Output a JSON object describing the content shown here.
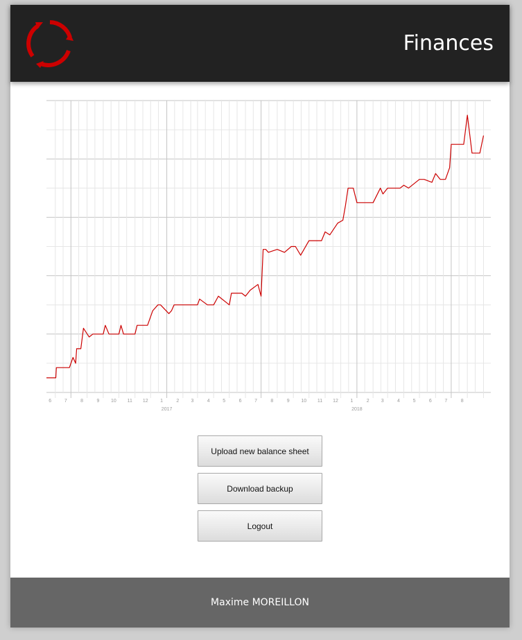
{
  "header": {
    "title": "Finances",
    "logo_icon": "circular-arrows-logo-icon"
  },
  "actions": {
    "upload_label": "Upload new balance sheet",
    "download_label": "Download backup",
    "logout_label": "Logout"
  },
  "footer": {
    "author": "Maxime MOREILLON"
  },
  "colors": {
    "header_bg": "#222222",
    "accent": "#cc0000",
    "footer_bg": "#666666",
    "page_bg": "#cfcfcf"
  },
  "chart_data": {
    "type": "line",
    "title": "",
    "xlabel": "",
    "ylabel": "",
    "grid": true,
    "legend": "none",
    "x_tick_labels": [
      "6",
      "7",
      "8",
      "9",
      "10",
      "11",
      "12",
      "1",
      "2",
      "3",
      "4",
      "5",
      "6",
      "7",
      "8",
      "9",
      "10",
      "11",
      "12",
      "1",
      "2",
      "3",
      "4",
      "5",
      "6",
      "7",
      "8"
    ],
    "x_year_labels": [
      "2017",
      "2018"
    ],
    "series": [
      {
        "color": "#cc0000",
        "x": [
          "2016-05-15",
          "2016-06-02",
          "2016-06-03",
          "2016-06-28",
          "2016-07-05",
          "2016-07-10",
          "2016-07-12",
          "2016-07-20",
          "2016-07-25",
          "2016-08-05",
          "2016-08-12",
          "2016-08-20",
          "2016-09-01",
          "2016-09-05",
          "2016-09-12",
          "2016-10-01",
          "2016-10-05",
          "2016-10-10",
          "2016-11-01",
          "2016-11-05",
          "2016-11-25",
          "2016-12-05",
          "2016-12-15",
          "2016-12-20",
          "2017-01-05",
          "2017-01-10",
          "2017-01-15",
          "2017-02-01",
          "2017-02-15",
          "2017-03-01",
          "2017-03-05",
          "2017-03-20",
          "2017-04-01",
          "2017-04-10",
          "2017-05-01",
          "2017-05-05",
          "2017-05-25",
          "2017-06-01",
          "2017-06-10",
          "2017-06-25",
          "2017-07-01",
          "2017-07-05",
          "2017-07-10",
          "2017-07-15",
          "2017-08-01",
          "2017-08-15",
          "2017-08-28",
          "2017-09-05",
          "2017-09-15",
          "2017-10-01",
          "2017-10-25",
          "2017-11-01",
          "2017-11-10",
          "2017-11-25",
          "2017-12-05",
          "2017-12-10",
          "2017-12-15",
          "2017-12-25",
          "2018-01-01",
          "2018-01-10",
          "2018-01-20",
          "2018-02-01",
          "2018-02-15",
          "2018-02-20",
          "2018-03-01",
          "2018-03-25",
          "2018-04-01",
          "2018-04-10",
          "2018-05-01",
          "2018-05-10",
          "2018-05-25",
          "2018-06-01",
          "2018-06-10",
          "2018-06-20",
          "2018-06-28",
          "2018-07-01",
          "2018-07-25",
          "2018-08-01",
          "2018-08-10",
          "2018-08-25",
          "2018-09-01"
        ],
        "y": [
          0.5,
          0.5,
          0.85,
          0.85,
          1.2,
          1.0,
          1.5,
          1.5,
          2.2,
          1.9,
          2.0,
          2.0,
          2.0,
          2.3,
          2.0,
          2.0,
          2.3,
          2.0,
          2.0,
          2.3,
          2.3,
          2.8,
          3.0,
          3.0,
          2.7,
          2.8,
          3.0,
          3.0,
          3.0,
          3.0,
          3.2,
          3.0,
          3.0,
          3.3,
          3.0,
          3.4,
          3.4,
          3.3,
          3.5,
          3.7,
          3.3,
          4.9,
          4.9,
          4.8,
          4.9,
          4.8,
          5.0,
          5.0,
          4.7,
          5.2,
          5.2,
          5.5,
          5.4,
          5.8,
          5.9,
          6.4,
          7.0,
          7.0,
          6.5,
          6.5,
          6.5,
          6.5,
          7.0,
          6.8,
          7.0,
          7.0,
          7.1,
          7.0,
          7.3,
          7.3,
          7.2,
          7.5,
          7.3,
          7.3,
          7.7,
          8.5,
          8.5,
          9.5,
          8.2,
          8.2,
          8.8
        ]
      }
    ]
  }
}
